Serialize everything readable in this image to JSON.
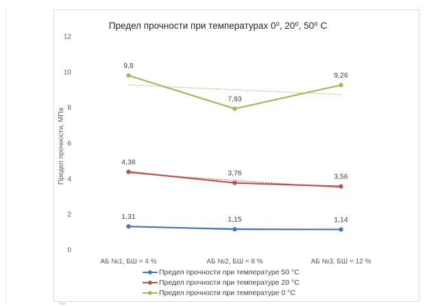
{
  "chart_data": {
    "type": "line",
    "title": "Предел прочности при температурах 0⁰, 20⁰, 50⁰ С",
    "ylabel": "Предел прочности, МПа",
    "xlabel": "",
    "categories": [
      "АБ №1, БШ = 4 %",
      "АБ №2, БШ = 8 %",
      "АБ №3, БШ = 12 %"
    ],
    "ylim": [
      0,
      12
    ],
    "yticks": [
      0,
      2,
      4,
      6,
      8,
      10,
      12
    ],
    "grid": false,
    "legend_position": "bottom",
    "trendlines": true,
    "series": [
      {
        "name": "Предел прочности при температуре 50 °С",
        "values": [
          1.31,
          1.15,
          1.14
        ],
        "labels": [
          "1,31",
          "1,15",
          "1,14"
        ],
        "color": "#4472c4"
      },
      {
        "name": "Предел прочности при температуре 20 °С",
        "values": [
          4.38,
          3.76,
          3.56
        ],
        "labels": [
          "4,38",
          "3,76",
          "3,56"
        ],
        "color": "#c0504d"
      },
      {
        "name": "Предел прочности при температуре 0 °С",
        "values": [
          9.8,
          7.93,
          9.26
        ],
        "labels": [
          "9,8",
          "7,93",
          "9,26"
        ],
        "color": "#9bbb59"
      }
    ]
  }
}
